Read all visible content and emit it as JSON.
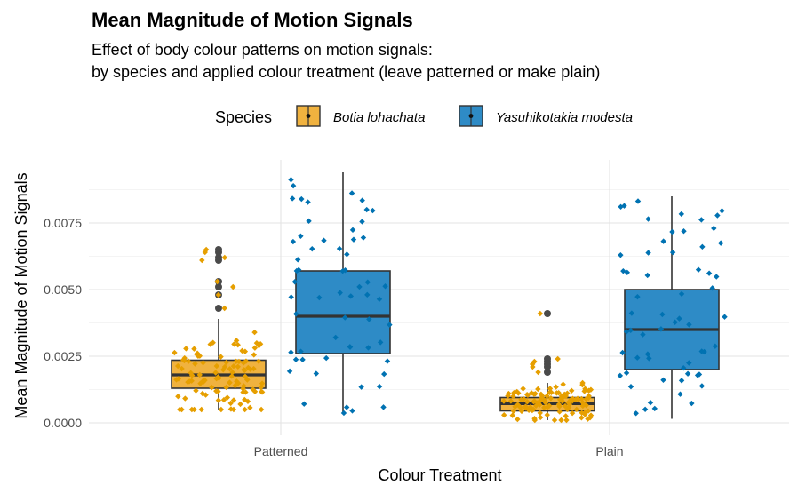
{
  "chart_data": {
    "type": "boxplot",
    "title": "Mean Magnitude of Motion Signals",
    "subtitle_lines": [
      "Effect of body colour patterns on motion signals:",
      "by species and applied colour treatment (leave patterned or make plain)"
    ],
    "xlabel": "Colour Treatment",
    "ylabel": "Mean Magnitude of Motion Signals",
    "categories": [
      "Patterned",
      "Plain"
    ],
    "ylim": [
      -0.0003,
      0.0098
    ],
    "yticks": [
      0.0,
      0.0025,
      0.005,
      0.0075
    ],
    "ytick_labels": [
      "0.0000",
      "0.0025",
      "0.0050",
      "0.0075"
    ],
    "grid": true,
    "legend": {
      "title": "Species",
      "position": "top"
    },
    "series": [
      {
        "name": "Botia lohachata",
        "color": "#E69F00",
        "fill": "#F0B23F",
        "boxes": [
          {
            "category": "Patterned",
            "min": 0.0005,
            "q1": 0.0013,
            "median": 0.0018,
            "q3": 0.00235,
            "max": 0.0039,
            "outliers": [
              0.0043,
              0.0048,
              0.0051,
              0.0053,
              0.0061,
              0.0062,
              0.0064,
              0.0065
            ]
          },
          {
            "category": "Plain",
            "min": 0.0001,
            "q1": 0.00045,
            "median": 0.00072,
            "q3": 0.00095,
            "max": 0.0015,
            "outliers": [
              0.0019,
              0.0021,
              0.0022,
              0.0023,
              0.0024,
              0.0041
            ]
          }
        ]
      },
      {
        "name": "Yasuhikotakia modesta",
        "color": "#0072B2",
        "fill": "#2E8BC6",
        "boxes": [
          {
            "category": "Patterned",
            "min": 0.00035,
            "q1": 0.0026,
            "median": 0.004,
            "q3": 0.0057,
            "max": 0.0094,
            "outliers": []
          },
          {
            "category": "Plain",
            "min": 0.00015,
            "q1": 0.002,
            "median": 0.0035,
            "q3": 0.005,
            "max": 0.0085,
            "outliers": []
          }
        ]
      }
    ]
  }
}
